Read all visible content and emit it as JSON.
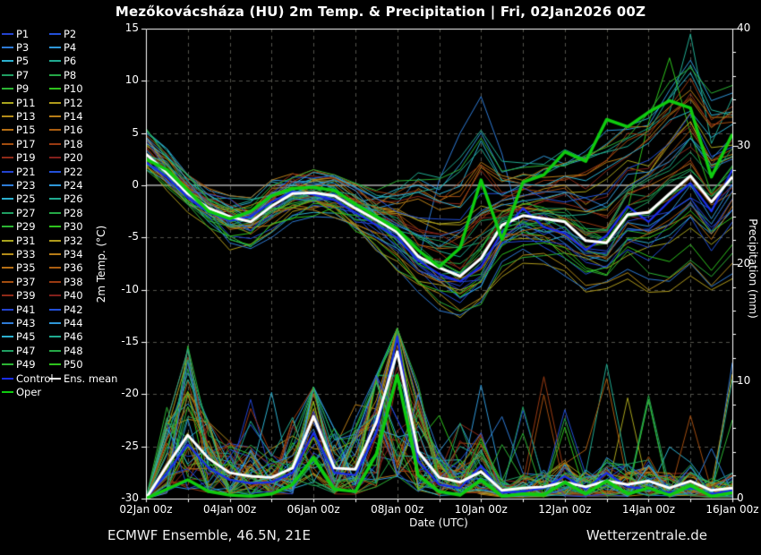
{
  "title": "Mezőkovácsháza  (HU)  2m Temp. & Precipitation | Fri, 02Jan2026 00Z",
  "footer": {
    "left": "ECMWF Ensemble, 46.5N, 21E",
    "right": "Wetterzentrale.de"
  },
  "axes": {
    "left": {
      "label": "2m Temp. (°C)",
      "ticks": [
        15,
        10,
        5,
        0,
        -5,
        -10,
        -15,
        -20,
        -25,
        -30
      ],
      "range": [
        -30,
        15
      ]
    },
    "right": {
      "label": "Precipitation (mm)",
      "ticks": [
        40,
        30,
        20,
        10,
        0
      ],
      "minor_step_mm": 2,
      "range": [
        0,
        40
      ]
    },
    "x": {
      "label": "Date (UTC)",
      "tick_labels": [
        "02Jan 00z",
        "04Jan 00z",
        "06Jan 00z",
        "08Jan 00z",
        "10Jan 00z",
        "12Jan 00z",
        "14Jan 00z",
        "16Jan 00z"
      ],
      "days_total": 14,
      "label_every_days": 2,
      "gridline_every_days": 1
    }
  },
  "legend": {
    "members": [
      "P1",
      "P2",
      "P3",
      "P4",
      "P5",
      "P6",
      "P7",
      "P8",
      "P9",
      "P10",
      "P11",
      "P12",
      "P13",
      "P14",
      "P15",
      "P16",
      "P17",
      "P18",
      "P19",
      "P20",
      "P21",
      "P22",
      "P23",
      "P24",
      "P25",
      "P26",
      "P27",
      "P28",
      "P29",
      "P30",
      "P31",
      "P32",
      "P33",
      "P34",
      "P35",
      "P36",
      "P37",
      "P38",
      "P39",
      "P40",
      "P41",
      "P42",
      "P43",
      "P44",
      "P45",
      "P46",
      "P47",
      "P48",
      "P49",
      "P50"
    ],
    "special": [
      {
        "label": "Control",
        "color": "#1a2de8"
      },
      {
        "label": "Ens. mean",
        "color": "#ffffff"
      },
      {
        "label": "Oper",
        "color": "#0fcb0f"
      }
    ]
  },
  "colors": {
    "background": "#000000",
    "grid": "#55554c",
    "axis": "#ffffff",
    "zero_line": "#ffffff",
    "member_palette": [
      "#2343cf",
      "#2350d9",
      "#2e7bd6",
      "#2f97d8",
      "#2cb0cf",
      "#20ab91",
      "#1f9e62",
      "#25a847",
      "#2cb434",
      "#2ec31d",
      "#a8a41d",
      "#b09b1b",
      "#b48c19",
      "#b87d17",
      "#b56f15",
      "#ab5e11",
      "#a24d0f",
      "#9a3a12",
      "#8f2a18",
      "#83201c"
    ]
  },
  "chart_data": {
    "type": "line",
    "title": "Mezőkovácsháza  (HU)  2m Temp. & Precipitation | Fri, 02Jan2026 00Z",
    "xlabel": "Date (UTC)",
    "ylabel_left": "2m Temp. (°C)",
    "ylabel_right": "Precipitation (mm)",
    "x_start": "02Jan 00z",
    "x_end": "16Jan 00z",
    "x_step_hours": 12,
    "n_points": 29,
    "ylim_temp": [
      -30,
      15
    ],
    "ylim_precip": [
      0,
      40
    ],
    "grid": true,
    "legend_position": "left",
    "n_members": 50,
    "series": [
      {
        "name": "Ens. mean 2m temp (°C)",
        "color": "#ffffff",
        "width": 3,
        "values": [
          3.0,
          1.2,
          -0.8,
          -2.2,
          -3.0,
          -3.5,
          -2.0,
          -0.8,
          -0.7,
          -1.0,
          -2.2,
          -3.3,
          -4.5,
          -6.8,
          -7.9,
          -8.7,
          -7.0,
          -3.8,
          -2.9,
          -3.2,
          -3.5,
          -5.3,
          -5.5,
          -2.8,
          -2.6,
          -0.8,
          0.9,
          -1.6,
          0.8
        ]
      },
      {
        "name": "Oper 2m temp (°C)",
        "color": "#0fcb0f",
        "width": 3.5,
        "values": [
          2.5,
          1.5,
          -0.5,
          -2.5,
          -3.2,
          -2.5,
          -1.0,
          -0.3,
          -0.2,
          -0.5,
          -1.8,
          -3.0,
          -4.2,
          -6.2,
          -7.8,
          -6.0,
          0.5,
          -5.2,
          0.3,
          1.0,
          3.2,
          2.3,
          6.3,
          5.6,
          7.0,
          8.1,
          7.4,
          0.8,
          4.9
        ]
      },
      {
        "name": "Control 2m temp (°C)",
        "color": "#1a2de8",
        "width": 2.2,
        "values": [
          2.2,
          0.8,
          -1.2,
          -2.6,
          -3.4,
          -3.0,
          -1.6,
          -0.6,
          -0.9,
          -1.4,
          -2.6,
          -3.8,
          -5.0,
          -7.2,
          -8.5,
          -9.2,
          -7.8,
          -4.5,
          -2.2,
          -4.0,
          -4.6,
          -6.2,
          -4.8,
          -2.0,
          -3.5,
          -1.5,
          0.2,
          -2.5,
          1.5
        ]
      },
      {
        "name": "Ens. mean precipitation (mm/12h)",
        "color": "#ffffff",
        "width": 3,
        "values": [
          0,
          2.8,
          5.4,
          3.4,
          2.2,
          1.9,
          1.8,
          2.6,
          7.0,
          2.6,
          2.5,
          6.5,
          12.5,
          4.0,
          1.8,
          1.4,
          2.3,
          0.7,
          0.9,
          1.0,
          1.4,
          1.0,
          1.5,
          1.2,
          1.5,
          0.9,
          1.5,
          0.7,
          0.9
        ]
      },
      {
        "name": "Oper precipitation (mm/12h)",
        "color": "#0fcb0f",
        "width": 3.5,
        "values": [
          0,
          0.8,
          1.6,
          0.6,
          0.3,
          0.2,
          0.4,
          1.2,
          3.5,
          0.8,
          0.6,
          3.8,
          10.5,
          2.0,
          0.6,
          0.3,
          1.6,
          0.2,
          0.4,
          0.3,
          1.4,
          0.4,
          1.5,
          0.4,
          0.9,
          0.3,
          1.1,
          0.2,
          0.5
        ]
      },
      {
        "name": "Control precipitation (mm/12h)",
        "color": "#1a2de8",
        "width": 2.2,
        "values": [
          0,
          2.2,
          4.6,
          2.6,
          1.6,
          1.3,
          1.4,
          2.2,
          5.6,
          2.2,
          2.0,
          5.6,
          13.8,
          3.2,
          1.2,
          0.9,
          2.8,
          0.5,
          0.6,
          0.9,
          1.9,
          0.8,
          2.2,
          1.0,
          0.8,
          0.5,
          0.9,
          0.4,
          0.7
        ]
      }
    ],
    "ensemble_envelope": {
      "temp_max": [
        5.5,
        3.5,
        1.0,
        -0.3,
        -1.0,
        -1.2,
        0.5,
        1.2,
        1.5,
        1.0,
        0.2,
        -0.5,
        0.5,
        3.0,
        3.0,
        5.0,
        8.5,
        3.0,
        2.5,
        3.5,
        4.5,
        5.5,
        7.5,
        8.5,
        9.5,
        12.2,
        14.5,
        11.0,
        10.5
      ],
      "temp_min": [
        1.5,
        -0.5,
        -2.8,
        -4.5,
        -6.2,
        -6.5,
        -5.0,
        -3.5,
        -3.0,
        -3.5,
        -5.0,
        -6.5,
        -8.5,
        -10.5,
        -12.0,
        -13.0,
        -12.5,
        -9.5,
        -8.0,
        -8.5,
        -9.5,
        -10.5,
        -11.0,
        -10.0,
        -11.5,
        -12.0,
        -10.0,
        -12.5,
        -11.0
      ],
      "precip_max": [
        0.5,
        8.0,
        13.0,
        6.5,
        5.0,
        9.0,
        13.5,
        7.5,
        9.5,
        6.0,
        8.0,
        10.5,
        14.5,
        12.0,
        8.5,
        6.5,
        11.0,
        7.0,
        8.0,
        10.5,
        8.0,
        7.5,
        12.0,
        10.0,
        9.0,
        7.5,
        8.0,
        6.0,
        12.0
      ],
      "precip_min": [
        0,
        0,
        0,
        0,
        0,
        0,
        0,
        0,
        0,
        0,
        0,
        0,
        0,
        0,
        0,
        0,
        0,
        0,
        0,
        0,
        0,
        0,
        0,
        0,
        0,
        0,
        0,
        0,
        0
      ]
    }
  }
}
